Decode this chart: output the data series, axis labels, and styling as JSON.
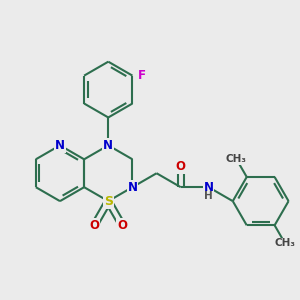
{
  "bg_color": "#ebebeb",
  "bond_color": "#2d6e4e",
  "bond_width": 1.5,
  "atom_colors": {
    "N": "#0000cc",
    "O": "#cc0000",
    "S": "#b8b800",
    "F": "#cc00cc",
    "C": "#2d6e4e",
    "H": "#555555"
  },
  "fig_size": [
    3.0,
    3.0
  ],
  "dpi": 100,
  "xlim": [
    -3.0,
    4.5
  ],
  "ylim": [
    -2.8,
    4.0
  ]
}
